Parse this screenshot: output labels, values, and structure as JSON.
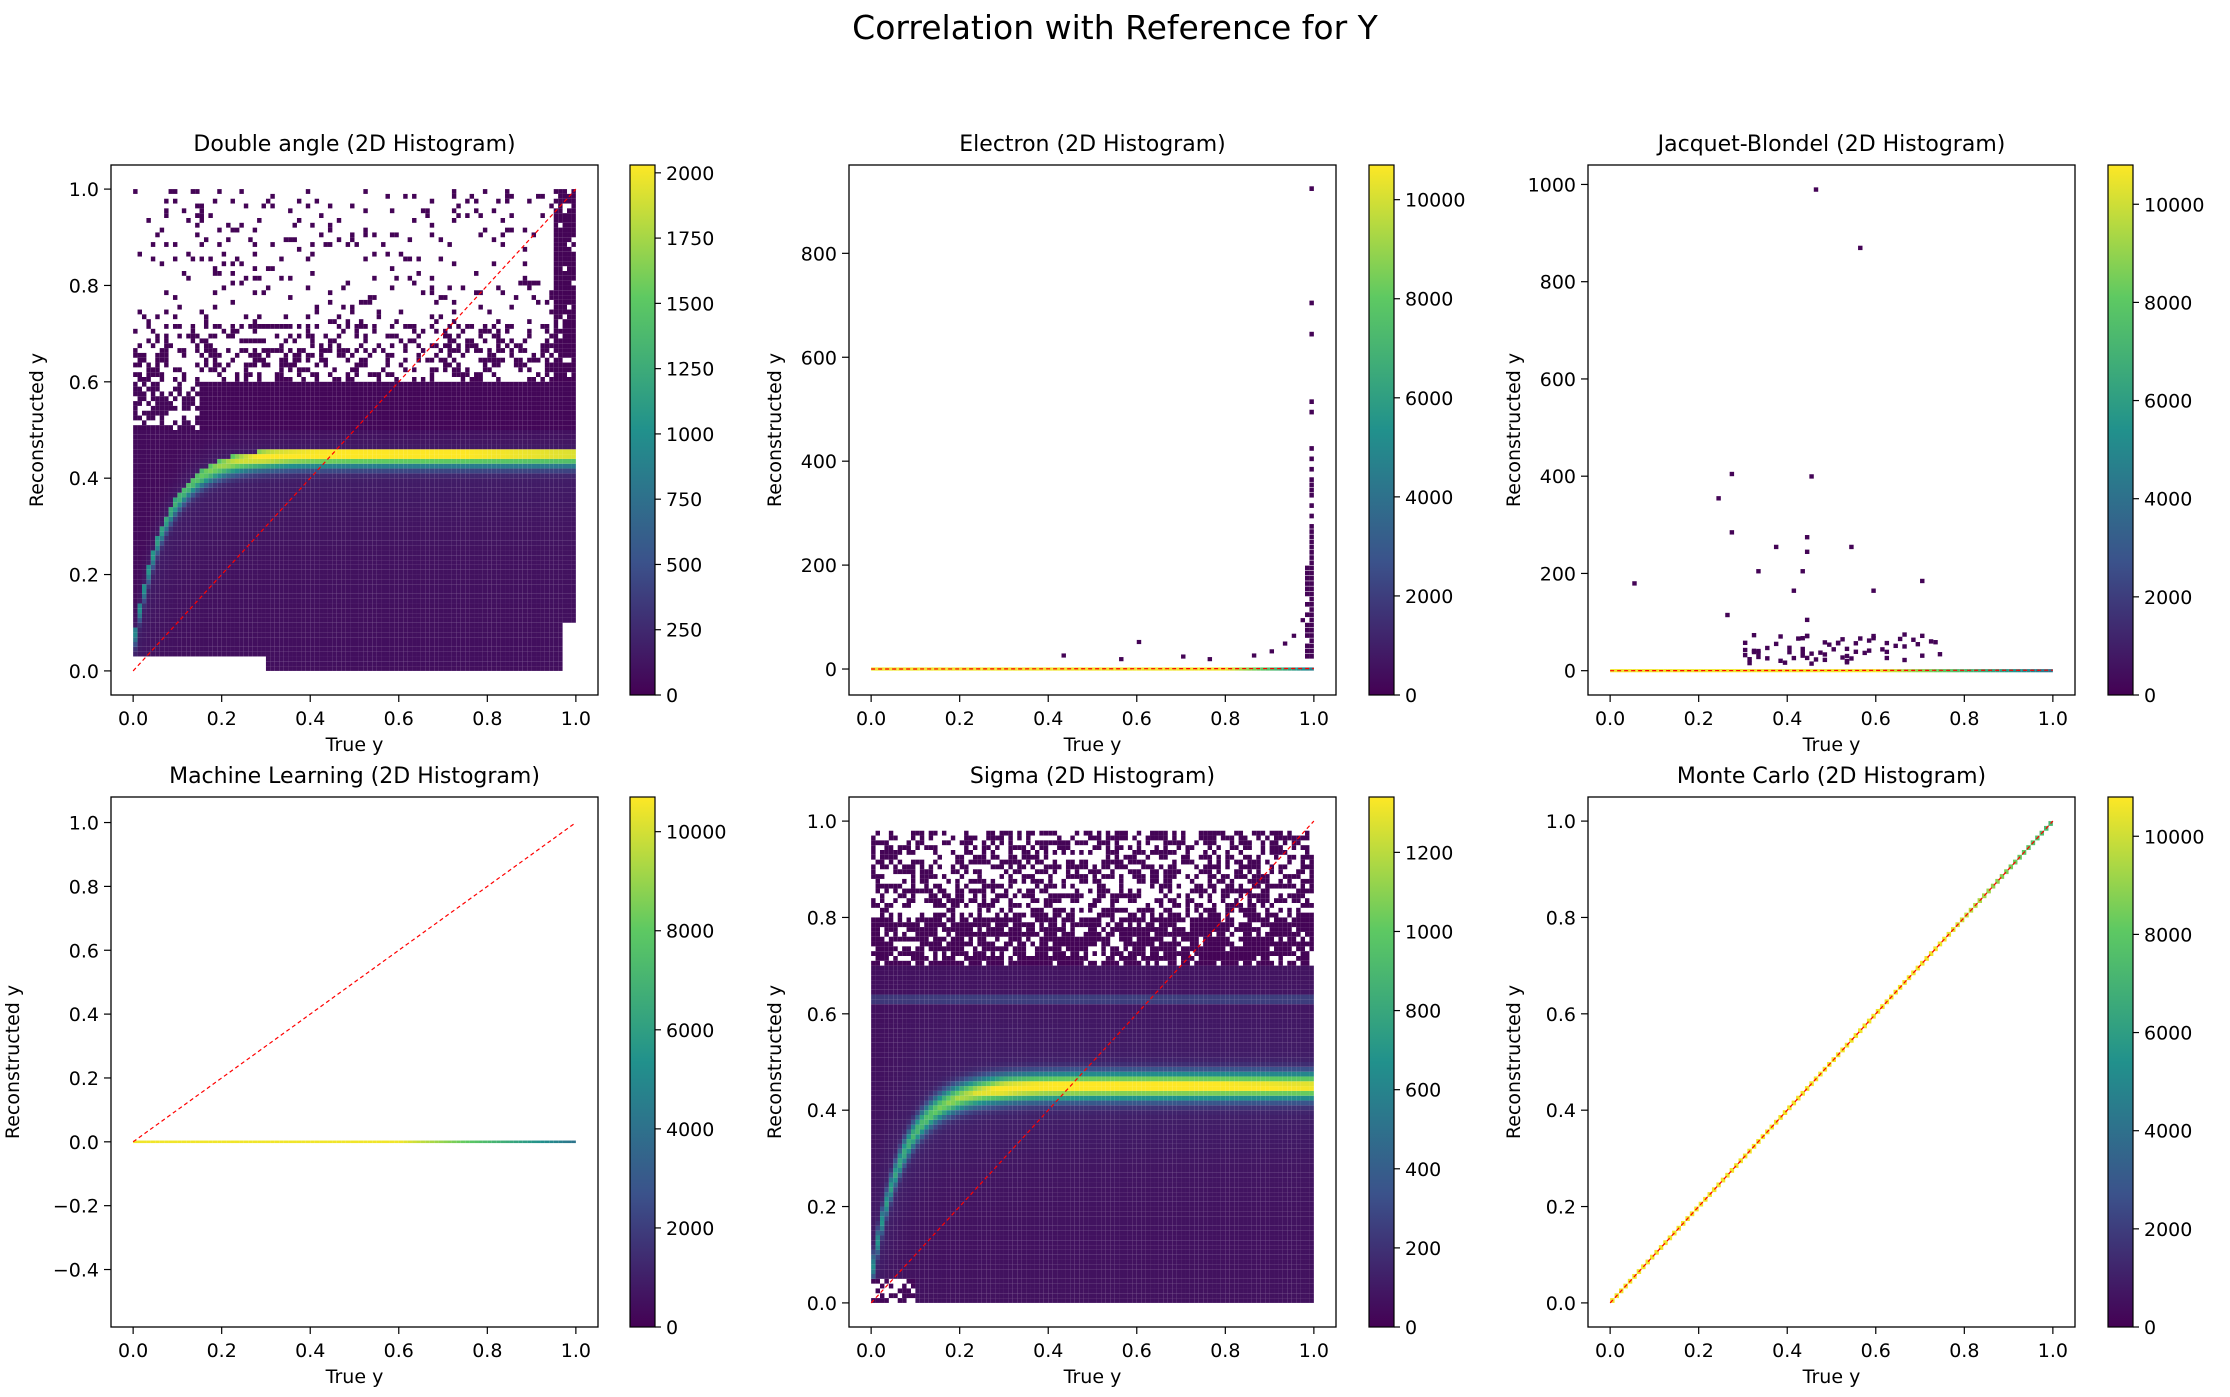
{
  "figure": {
    "title": "Correlation with Reference for Y"
  },
  "colormap": "viridis",
  "colormap_stops": [
    "#440154",
    "#3b528b",
    "#21918c",
    "#5ec962",
    "#fde725"
  ],
  "reference_line_color": "#ff0000",
  "chart_data": [
    {
      "type": "heatmap",
      "title": "Double angle (2D Histogram)",
      "xlabel": "True y",
      "ylabel": "Reconstructed y",
      "xlim": [
        -0.05,
        1.05
      ],
      "ylim": [
        -0.05,
        1.05
      ],
      "xticks": [
        0.0,
        0.2,
        0.4,
        0.6,
        0.8,
        1.0
      ],
      "xtick_labels": [
        "0.0",
        "0.2",
        "0.4",
        "0.6",
        "0.8",
        "1.0"
      ],
      "yticks": [
        0.0,
        0.2,
        0.4,
        0.6,
        0.8,
        1.0
      ],
      "ytick_labels": [
        "0.0",
        "0.2",
        "0.4",
        "0.6",
        "0.8",
        "1.0"
      ],
      "colorbar": {
        "range": [
          0,
          2030
        ],
        "ticks": [
          0,
          250,
          500,
          750,
          1000,
          1250,
          1500,
          1750,
          2000
        ],
        "tick_labels": [
          "0",
          "250",
          "500",
          "750",
          "1000",
          "1250",
          "1500",
          "1750",
          "2000"
        ]
      },
      "reference_line": [
        [
          0,
          0
        ],
        [
          1,
          1
        ]
      ],
      "distribution": "saturating band rising from about 0.1 at low true y to a plateau near 0.45 (peak near true y 0.6-0.7), dense fill between 0.0 and 0.5, scattered sparse bins up to 1.0"
    },
    {
      "type": "heatmap",
      "title": "Electron (2D Histogram)",
      "xlabel": "True y",
      "ylabel": "Reconstructed y",
      "xlim": [
        -0.05,
        1.05
      ],
      "ylim": [
        -50,
        970
      ],
      "xticks": [
        0.0,
        0.2,
        0.4,
        0.6,
        0.8,
        1.0
      ],
      "xtick_labels": [
        "0.0",
        "0.2",
        "0.4",
        "0.6",
        "0.8",
        "1.0"
      ],
      "yticks": [
        0,
        200,
        400,
        600,
        800
      ],
      "ytick_labels": [
        "0",
        "200",
        "400",
        "600",
        "800"
      ],
      "colorbar": {
        "range": [
          0,
          10700
        ],
        "ticks": [
          0,
          2000,
          4000,
          6000,
          8000,
          10000
        ],
        "tick_labels": [
          "0",
          "2000",
          "4000",
          "6000",
          "8000",
          "10000"
        ]
      },
      "reference_line": [
        [
          0,
          0
        ],
        [
          1,
          1
        ]
      ],
      "distribution": "nearly all counts along reconstructed y ~ 0 (bright yellow) with outliers rising steeply near true y 1.0 up to ~920"
    },
    {
      "type": "heatmap",
      "title": "Jacquet-Blondel (2D Histogram)",
      "xlabel": "True y",
      "ylabel": "Reconstructed y",
      "xlim": [
        -0.05,
        1.05
      ],
      "ylim": [
        -50,
        1040
      ],
      "xticks": [
        0.0,
        0.2,
        0.4,
        0.6,
        0.8,
        1.0
      ],
      "xtick_labels": [
        "0.0",
        "0.2",
        "0.4",
        "0.6",
        "0.8",
        "1.0"
      ],
      "yticks": [
        0,
        200,
        400,
        600,
        800,
        1000
      ],
      "ytick_labels": [
        "0",
        "200",
        "400",
        "600",
        "800",
        "1000"
      ],
      "colorbar": {
        "range": [
          0,
          10800
        ],
        "ticks": [
          0,
          2000,
          4000,
          6000,
          8000,
          10000
        ],
        "tick_labels": [
          "0",
          "2000",
          "4000",
          "6000",
          "8000",
          "10000"
        ]
      },
      "reference_line": [
        [
          0,
          0
        ],
        [
          1,
          1
        ]
      ],
      "distribution": "counts concentrated near reconstructed y ~ 0 across all true y, sparse outliers between 0.05 and 0.75 up to ~985"
    },
    {
      "type": "heatmap",
      "title": "Machine Learning (2D Histogram)",
      "xlabel": "True y",
      "ylabel": "Reconstructed y",
      "xlim": [
        -0.05,
        1.05
      ],
      "ylim": [
        -0.58,
        1.08
      ],
      "xticks": [
        0.0,
        0.2,
        0.4,
        0.6,
        0.8,
        1.0
      ],
      "xtick_labels": [
        "0.0",
        "0.2",
        "0.4",
        "0.6",
        "0.8",
        "1.0"
      ],
      "yticks": [
        -0.4,
        -0.2,
        0.0,
        0.2,
        0.4,
        0.6,
        0.8,
        1.0
      ],
      "ytick_labels": [
        "−0.4",
        "−0.2",
        "0.0",
        "0.2",
        "0.4",
        "0.6",
        "0.8",
        "1.0"
      ],
      "colorbar": {
        "range": [
          0,
          10700
        ],
        "ticks": [
          0,
          2000,
          4000,
          6000,
          8000,
          10000
        ],
        "tick_labels": [
          "0",
          "2000",
          "4000",
          "6000",
          "8000",
          "10000"
        ]
      },
      "reference_line": [
        [
          0,
          0
        ],
        [
          1,
          1
        ]
      ],
      "distribution": "all counts in a single row at reconstructed y ~ 0"
    },
    {
      "type": "heatmap",
      "title": "Sigma (2D Histogram)",
      "xlabel": "True y",
      "ylabel": "Reconstructed y",
      "xlim": [
        -0.05,
        1.05
      ],
      "ylim": [
        -0.05,
        1.05
      ],
      "xticks": [
        0.0,
        0.2,
        0.4,
        0.6,
        0.8,
        1.0
      ],
      "xtick_labels": [
        "0.0",
        "0.2",
        "0.4",
        "0.6",
        "0.8",
        "1.0"
      ],
      "yticks": [
        0.0,
        0.2,
        0.4,
        0.6,
        0.8,
        1.0
      ],
      "ytick_labels": [
        "0.0",
        "0.2",
        "0.4",
        "0.6",
        "0.8",
        "1.0"
      ],
      "colorbar": {
        "range": [
          0,
          1340
        ],
        "ticks": [
          0,
          200,
          400,
          600,
          800,
          1000,
          1200
        ],
        "tick_labels": [
          "0",
          "200",
          "400",
          "600",
          "800",
          "1000",
          "1200"
        ]
      },
      "reference_line": [
        [
          0,
          0
        ],
        [
          1,
          1
        ]
      ],
      "distribution": "saturating band rising to plateau near 0.45, secondary faint band near 0.63, dense fill 0.0-1.0 with sparse bins at top"
    },
    {
      "type": "heatmap",
      "title": "Monte Carlo (2D Histogram)",
      "xlabel": "True y",
      "ylabel": "Reconstructed y",
      "xlim": [
        -0.05,
        1.05
      ],
      "ylim": [
        -0.05,
        1.05
      ],
      "xticks": [
        0.0,
        0.2,
        0.4,
        0.6,
        0.8,
        1.0
      ],
      "xtick_labels": [
        "0.0",
        "0.2",
        "0.4",
        "0.6",
        "0.8",
        "1.0"
      ],
      "yticks": [
        0.0,
        0.2,
        0.4,
        0.6,
        0.8,
        1.0
      ],
      "ytick_labels": [
        "0.0",
        "0.2",
        "0.4",
        "0.6",
        "0.8",
        "1.0"
      ],
      "colorbar": {
        "range": [
          0,
          10800
        ],
        "ticks": [
          0,
          2000,
          4000,
          6000,
          8000,
          10000
        ],
        "tick_labels": [
          "0",
          "2000",
          "4000",
          "6000",
          "8000",
          "10000"
        ]
      },
      "reference_line": [
        [
          0,
          0
        ],
        [
          1,
          1
        ]
      ],
      "distribution": "all counts exactly on the diagonal reconstructed y = true y"
    }
  ]
}
